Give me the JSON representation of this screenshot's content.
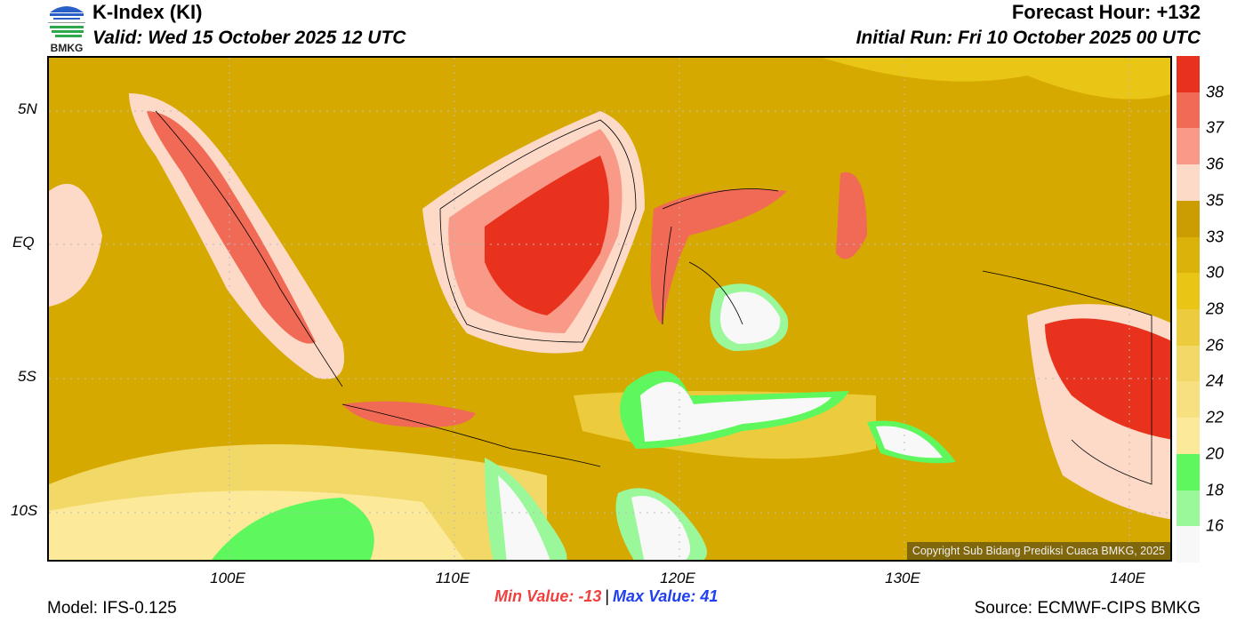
{
  "header": {
    "title": "K-Index (KI)",
    "valid": "Valid: Wed 15 October 2025 12 UTC",
    "forecast_hour": "Forecast Hour: +132",
    "initial_run": "Initial Run: Fri 10 October 2025 00 UTC"
  },
  "logo": {
    "text": "BMKG"
  },
  "map": {
    "copyright": "Copyright Sub Bidang Prediksi Cuaca BMKG, 2025",
    "lon_labels": [
      "100E",
      "110E",
      "120E",
      "130E",
      "140E"
    ],
    "lat_labels": [
      "5N",
      "EQ",
      "5S",
      "10S"
    ]
  },
  "colorbar": {
    "colors": [
      "#e8321e",
      "#f06a55",
      "#f99a88",
      "#fddac8",
      "#cc9d00",
      "#dab20a",
      "#e9c516",
      "#eccc3c",
      "#f2d866",
      "#f7e080",
      "#fde99a",
      "#5ef85e",
      "#9af89a",
      "#f8f8f8"
    ],
    "labels": [
      "38",
      "37",
      "36",
      "35",
      "33",
      "30",
      "28",
      "26",
      "24",
      "22",
      "20",
      "18",
      "16"
    ]
  },
  "footer": {
    "min_value": "Min Value: -13",
    "separator": "|",
    "max_value": "Max Value:  41",
    "model": "Model: IFS-0.125",
    "source": "Source: ECMWF-CIPS BMKG"
  }
}
